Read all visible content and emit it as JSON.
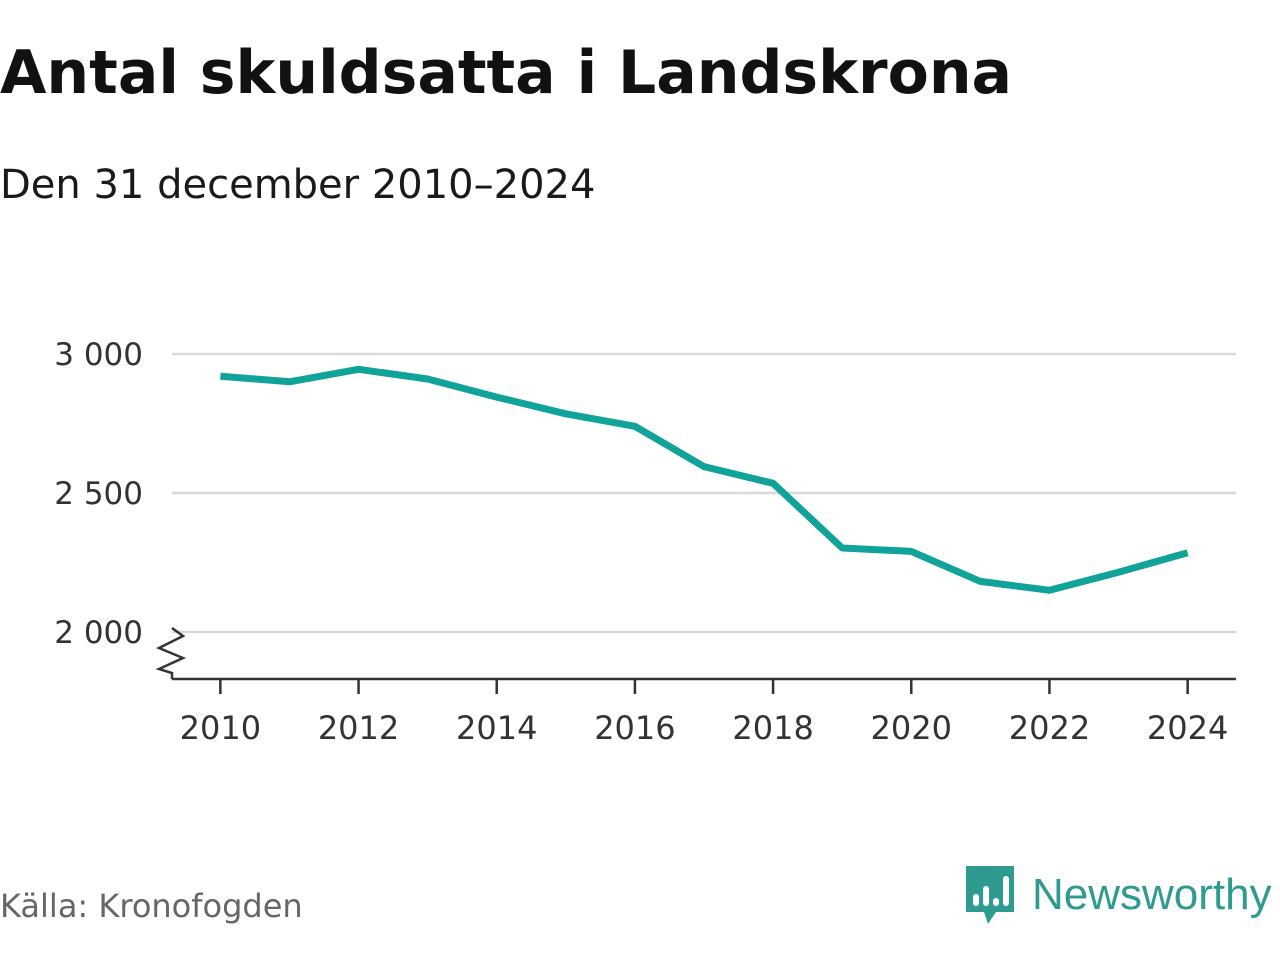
{
  "title": "Antal skuldsatta i Landskrona",
  "subtitle": "Den 31 december 2010–2024",
  "source": "Källa: Kronofogden",
  "brand": {
    "name": "Newsworthy",
    "icon": "newsworthy-logo-icon",
    "color": "#2f9a8f"
  },
  "chart_data": {
    "type": "line",
    "title": "Antal skuldsatta i Landskrona",
    "subtitle": "Den 31 december 2010–2024",
    "xlabel": "",
    "ylabel": "",
    "x": [
      2010,
      2011,
      2012,
      2013,
      2014,
      2015,
      2016,
      2017,
      2018,
      2019,
      2020,
      2021,
      2022,
      2023,
      2024
    ],
    "series": [
      {
        "values": [
          2920,
          2900,
          2945,
          2910,
          2845,
          2785,
          2740,
          2595,
          2535,
          2302,
          2290,
          2182,
          2150,
          2215,
          2285
        ],
        "color": "#0fa39a"
      }
    ],
    "xticks": [
      2010,
      2012,
      2014,
      2016,
      2018,
      2020,
      2022,
      2024
    ],
    "xtick_labels": [
      "2010",
      "2012",
      "2014",
      "2016",
      "2018",
      "2020",
      "2022",
      "2024"
    ],
    "yticks": [
      2000,
      2500,
      3000
    ],
    "ytick_labels": [
      "2 000",
      "2 500",
      "3 000"
    ],
    "xlim": [
      2009.3,
      2024.7
    ],
    "ylim": [
      2000,
      3000
    ],
    "y_axis_break": true,
    "grid": true,
    "legend": "none"
  }
}
